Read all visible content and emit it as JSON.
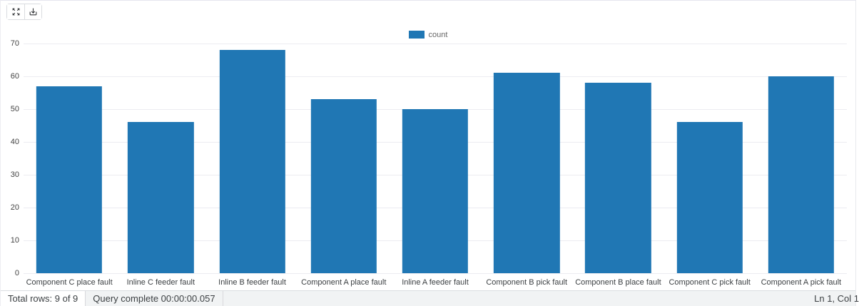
{
  "toolbar": {
    "buttons": [
      {
        "icon": "fullscreen-icon"
      },
      {
        "icon": "download-icon"
      }
    ]
  },
  "chart_data": {
    "type": "bar",
    "title": "",
    "categories": [
      "Component C place fault",
      "Inline C feeder fault",
      "Inline B feeder fault",
      "Component A place fault",
      "Inline A feeder fault",
      "Component B pick fault",
      "Component B place fault",
      "Component C pick fault",
      "Component A pick fault"
    ],
    "series": [
      {
        "name": "count",
        "values": [
          57,
          46,
          68,
          53,
          50,
          61,
          58,
          46,
          60
        ],
        "color": "#2077b4"
      }
    ],
    "xlabel": "",
    "ylabel": "",
    "ylim": [
      0,
      70
    ],
    "yticks": [
      0,
      10,
      20,
      30,
      40,
      50,
      60,
      70
    ],
    "grid": true,
    "legend_position": "top-center"
  },
  "status_bar": {
    "total_rows": "Total rows: 9 of 9",
    "query_status": "Query complete 00:00:00.057",
    "cursor_position": "Ln 1, Col 1"
  },
  "colors": {
    "bar": "#2077b4",
    "gridline": "#ececf1",
    "statusbar_bg": "#f1f3f4"
  }
}
